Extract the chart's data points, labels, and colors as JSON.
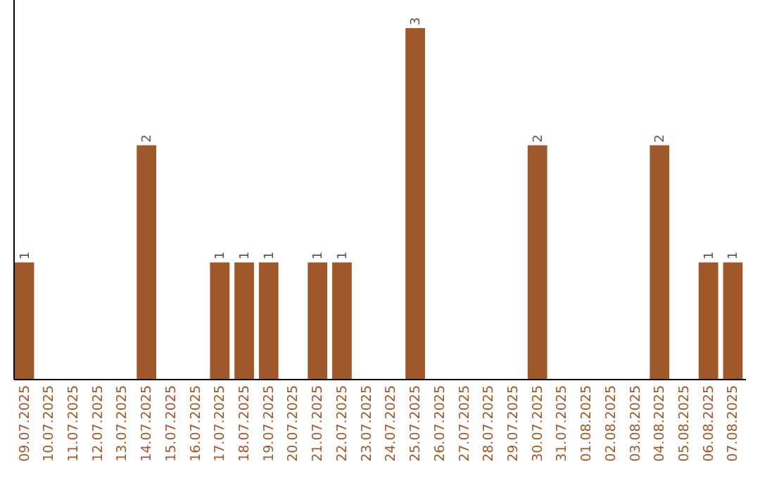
{
  "chart_data": {
    "type": "bar",
    "categories": [
      "09.07.2025",
      "10.07.2025",
      "11.07.2025",
      "12.07.2025",
      "13.07.2025",
      "14.07.2025",
      "15.07.2025",
      "16.07.2025",
      "17.07.2025",
      "18.07.2025",
      "19.07.2025",
      "20.07.2025",
      "21.07.2025",
      "22.07.2025",
      "23.07.2025",
      "24.07.2025",
      "25.07.2025",
      "26.07.2025",
      "27.07.2025",
      "28.07.2025",
      "29.07.2025",
      "30.07.2025",
      "31.07.2025",
      "01.08.2025",
      "02.08.2025",
      "03.08.2025",
      "04.08.2025",
      "05.08.2025",
      "06.08.2025",
      "07.08.2025"
    ],
    "values": [
      1,
      0,
      0,
      0,
      0,
      2,
      0,
      0,
      1,
      1,
      1,
      0,
      1,
      1,
      0,
      0,
      3,
      0,
      0,
      0,
      0,
      2,
      0,
      0,
      0,
      0,
      2,
      0,
      1,
      1
    ],
    "value_labels": [
      "1",
      null,
      null,
      null,
      null,
      "2",
      null,
      null,
      "1",
      "1",
      "1",
      null,
      "1",
      "1",
      null,
      null,
      "3",
      null,
      null,
      null,
      null,
      "2",
      null,
      null,
      null,
      null,
      "2",
      null,
      "1",
      "1"
    ],
    "color": "#a0582a",
    "ylim": [
      0,
      3
    ],
    "tick_labels": "x"
  }
}
